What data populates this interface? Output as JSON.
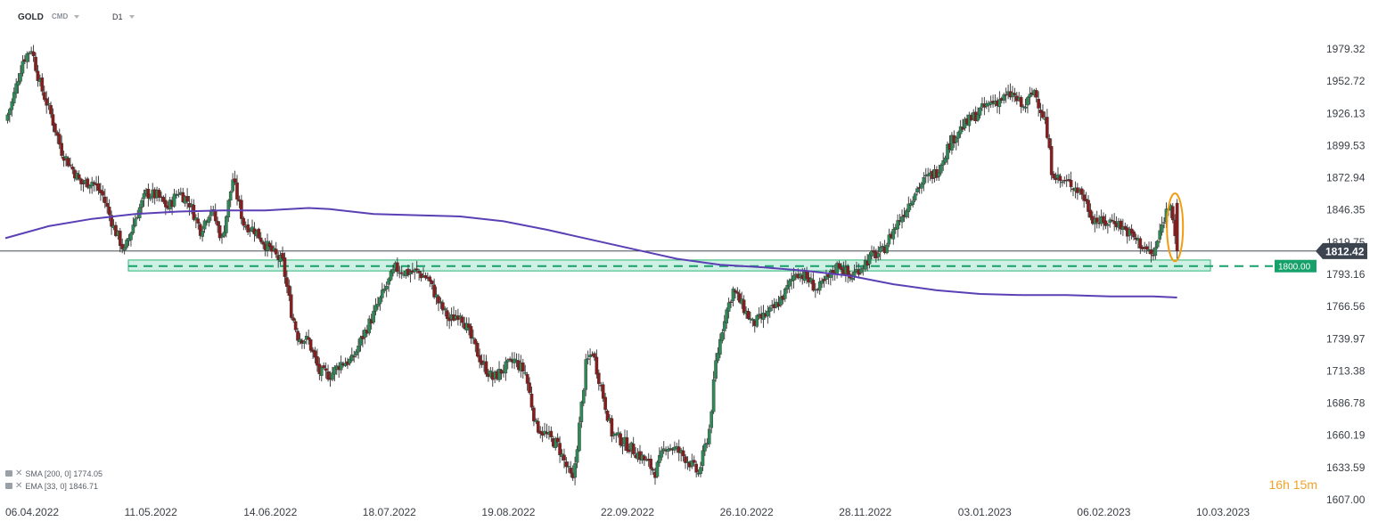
{
  "header": {
    "symbol": "GOLD",
    "tag": "CMD",
    "timeframe": "D1"
  },
  "indicators": [
    {
      "label": "SMA [200, 0] 1774.05",
      "color": "#5b3fb5"
    },
    {
      "label": "EMA [33, 0] 1846.71",
      "color": "#5b3fb5"
    }
  ],
  "timer": {
    "hours": "16",
    "h_unit": "h",
    "minutes": "15",
    "m_unit": "m"
  },
  "colors": {
    "bull": "#2e8b57",
    "bear": "#8b1c1c",
    "ma": "#5b3fb5",
    "zone_fill": "#a8e6cf",
    "zone_stroke": "#2bb673",
    "level": "#16a06a",
    "current_tag": "#3c4450",
    "highlight": "#f39c12"
  },
  "chart_data": {
    "type": "candlestick",
    "symbol": "GOLD",
    "timeframe": "D1",
    "y_ticks": [
      1979.32,
      1952.72,
      1926.13,
      1899.53,
      1872.94,
      1846.35,
      1819.75,
      1793.16,
      1766.56,
      1739.97,
      1713.38,
      1686.78,
      1660.19,
      1633.59,
      1607.0
    ],
    "ylim": [
      1607.0,
      1995.0
    ],
    "x_ticks": [
      "06.04.2022",
      "11.05.2022",
      "14.06.2022",
      "18.07.2022",
      "19.08.2022",
      "22.09.2022",
      "26.10.2022",
      "28.11.2022",
      "03.01.2023",
      "06.02.2023",
      "10.03.2023"
    ],
    "current_price": 1812.42,
    "current_price_label": "1812.42",
    "level": 1800.0,
    "level_label": "1800.00",
    "support_zone": [
      1796.0,
      1805.0
    ],
    "close_path": [
      [
        0,
        1920
      ],
      [
        3,
        1935
      ],
      [
        8,
        1970
      ],
      [
        12,
        1980
      ],
      [
        16,
        1950
      ],
      [
        21,
        1925
      ],
      [
        26,
        1895
      ],
      [
        31,
        1880
      ],
      [
        35,
        1868
      ],
      [
        40,
        1870
      ],
      [
        45,
        1858
      ],
      [
        50,
        1832
      ],
      [
        55,
        1812
      ],
      [
        60,
        1840
      ],
      [
        65,
        1860
      ],
      [
        70,
        1858
      ],
      [
        75,
        1848
      ],
      [
        80,
        1862
      ],
      [
        85,
        1852
      ],
      [
        90,
        1830
      ],
      [
        95,
        1848
      ],
      [
        100,
        1822
      ],
      [
        105,
        1872
      ],
      [
        110,
        1835
      ],
      [
        115,
        1830
      ],
      [
        120,
        1818
      ],
      [
        125,
        1808
      ],
      [
        128,
        1803
      ],
      [
        132,
        1762
      ],
      [
        135,
        1742
      ],
      [
        140,
        1738
      ],
      [
        145,
        1712
      ],
      [
        150,
        1710
      ],
      [
        155,
        1720
      ],
      [
        160,
        1722
      ],
      [
        165,
        1742
      ],
      [
        170,
        1760
      ],
      [
        175,
        1780
      ],
      [
        180,
        1798
      ],
      [
        185,
        1795
      ],
      [
        190,
        1795
      ],
      [
        195,
        1790
      ],
      [
        200,
        1770
      ],
      [
        205,
        1755
      ],
      [
        210,
        1762
      ],
      [
        215,
        1740
      ],
      [
        220,
        1720
      ],
      [
        225,
        1707
      ],
      [
        230,
        1715
      ],
      [
        235,
        1722
      ],
      [
        240,
        1712
      ],
      [
        245,
        1668
      ],
      [
        250,
        1660
      ],
      [
        255,
        1652
      ],
      [
        260,
        1630
      ],
      [
        262,
        1622
      ],
      [
        265,
        1668
      ],
      [
        268,
        1718
      ],
      [
        271,
        1730
      ],
      [
        275,
        1700
      ],
      [
        280,
        1662
      ],
      [
        285,
        1655
      ],
      [
        290,
        1648
      ],
      [
        295,
        1640
      ],
      [
        300,
        1630
      ],
      [
        305,
        1652
      ],
      [
        310,
        1648
      ],
      [
        315,
        1640
      ],
      [
        320,
        1628
      ],
      [
        325,
        1665
      ],
      [
        328,
        1720
      ],
      [
        332,
        1758
      ],
      [
        336,
        1780
      ],
      [
        340,
        1768
      ],
      [
        345,
        1752
      ],
      [
        350,
        1758
      ],
      [
        355,
        1765
      ],
      [
        360,
        1778
      ],
      [
        365,
        1796
      ],
      [
        370,
        1790
      ],
      [
        375,
        1780
      ],
      [
        380,
        1790
      ],
      [
        385,
        1802
      ],
      [
        390,
        1790
      ],
      [
        395,
        1800
      ],
      [
        400,
        1808
      ],
      [
        405,
        1812
      ],
      [
        410,
        1830
      ],
      [
        415,
        1845
      ],
      [
        420,
        1862
      ],
      [
        425,
        1872
      ],
      [
        430,
        1878
      ],
      [
        435,
        1898
      ],
      [
        440,
        1912
      ],
      [
        445,
        1920
      ],
      [
        450,
        1928
      ],
      [
        455,
        1935
      ],
      [
        460,
        1938
      ],
      [
        465,
        1942
      ],
      [
        470,
        1930
      ],
      [
        475,
        1945
      ],
      [
        480,
        1920
      ],
      [
        483,
        1880
      ],
      [
        487,
        1870
      ],
      [
        492,
        1868
      ],
      [
        497,
        1860
      ],
      [
        502,
        1840
      ],
      [
        507,
        1835
      ],
      [
        512,
        1838
      ],
      [
        517,
        1830
      ],
      [
        522,
        1822
      ],
      [
        527,
        1813
      ],
      [
        530,
        1808
      ],
      [
        535,
        1840
      ],
      [
        538,
        1855
      ],
      [
        541,
        1812
      ]
    ],
    "sma200_path": [
      [
        0,
        1823
      ],
      [
        20,
        1833
      ],
      [
        40,
        1839
      ],
      [
        60,
        1843
      ],
      [
        80,
        1845
      ],
      [
        100,
        1846
      ],
      [
        120,
        1846
      ],
      [
        140,
        1848
      ],
      [
        150,
        1847
      ],
      [
        170,
        1843
      ],
      [
        190,
        1842
      ],
      [
        210,
        1841
      ],
      [
        230,
        1837
      ],
      [
        250,
        1830
      ],
      [
        270,
        1822
      ],
      [
        290,
        1814
      ],
      [
        310,
        1806
      ],
      [
        330,
        1801
      ],
      [
        350,
        1799
      ],
      [
        370,
        1796
      ],
      [
        390,
        1792
      ],
      [
        410,
        1785
      ],
      [
        430,
        1780
      ],
      [
        450,
        1777
      ],
      [
        470,
        1776
      ],
      [
        490,
        1776
      ],
      [
        510,
        1775
      ],
      [
        530,
        1775
      ],
      [
        541,
        1774
      ]
    ]
  }
}
